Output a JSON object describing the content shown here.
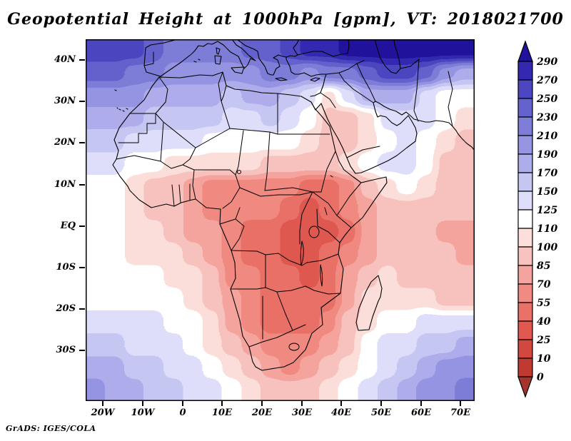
{
  "title": "Geopotential Height at 1000hPa [gpm], VT: 2018021700",
  "credit": "GrADS: IGES/COLA",
  "colors": {
    "background": "#ffffff",
    "frame": "#000000",
    "coastline": "#000000"
  },
  "axes": {
    "lat_tick_labels": [
      "40N",
      "30N",
      "20N",
      "10N",
      "EQ",
      "10S",
      "20S",
      "30S"
    ],
    "lon_tick_labels": [
      "20W",
      "10W",
      "0",
      "10E",
      "20E",
      "30E",
      "40E",
      "50E",
      "60E",
      "70E"
    ]
  },
  "colorbar": {
    "labels": [
      "290",
      "270",
      "250",
      "230",
      "210",
      "190",
      "170",
      "150",
      "125",
      "110",
      "100",
      "85",
      "70",
      "55",
      "40",
      "25",
      "10",
      "0"
    ],
    "palette_low_to_high": [
      "#a5342e",
      "#c03a32",
      "#d24840",
      "#e05850",
      "#ea7168",
      "#f08a82",
      "#f4a49e",
      "#f8c2be",
      "#fcdeda",
      "#ffffff",
      "#dedefa",
      "#c6c6f3",
      "#aeadeb",
      "#9695e2",
      "#7e7dd8",
      "#6462cd",
      "#4c46c0",
      "#3428b0",
      "#20129b"
    ]
  },
  "chart_data": {
    "type": "heatmap",
    "title": "Geopotential Height at 1000hPa [gpm]",
    "valid_time": "2018021700",
    "units": "gpm",
    "lon_range": [
      -24.3,
      73.5
    ],
    "lat_range": [
      -42.3,
      45.0
    ],
    "contour_levels": [
      0,
      10,
      25,
      40,
      55,
      70,
      85,
      100,
      110,
      125,
      150,
      170,
      190,
      210,
      230,
      250,
      270,
      290
    ],
    "grid_cols": 20,
    "grid_rows": 16,
    "grid_order": "north_to_south_rows_west_to_east_cols",
    "values_gpm": [
      [
        268,
        262,
        252,
        240,
        228,
        218,
        215,
        220,
        230,
        242,
        256,
        270,
        285,
        290,
        295,
        300,
        300,
        298,
        295,
        292
      ],
      [
        240,
        232,
        222,
        212,
        202,
        198,
        195,
        200,
        208,
        212,
        215,
        205,
        210,
        225,
        245,
        255,
        250,
        230,
        195,
        170
      ],
      [
        205,
        205,
        196,
        188,
        180,
        175,
        170,
        168,
        170,
        172,
        165,
        130,
        108,
        140,
        170,
        185,
        175,
        140,
        118,
        115
      ],
      [
        185,
        178,
        170,
        163,
        156,
        152,
        150,
        148,
        148,
        150,
        140,
        118,
        95,
        90,
        105,
        130,
        140,
        140,
        115,
        105
      ],
      [
        158,
        150,
        142,
        135,
        128,
        125,
        122,
        120,
        118,
        118,
        112,
        105,
        96,
        95,
        100,
        112,
        125,
        115,
        100,
        95
      ],
      [
        135,
        128,
        120,
        112,
        108,
        106,
        104,
        102,
        100,
        98,
        95,
        92,
        92,
        100,
        122,
        132,
        128,
        112,
        98,
        92
      ],
      [
        118,
        112,
        105,
        98,
        90,
        70,
        58,
        55,
        62,
        68,
        58,
        45,
        48,
        60,
        85,
        105,
        110,
        104,
        95,
        88
      ],
      [
        118,
        110,
        100,
        90,
        85,
        75,
        68,
        60,
        62,
        58,
        45,
        35,
        40,
        55,
        80,
        92,
        95,
        92,
        88,
        85
      ],
      [
        115,
        110,
        105,
        100,
        92,
        82,
        70,
        58,
        52,
        45,
        35,
        28,
        35,
        50,
        75,
        85,
        88,
        86,
        84,
        82
      ],
      [
        115,
        112,
        108,
        104,
        100,
        92,
        80,
        62,
        52,
        45,
        38,
        32,
        40,
        60,
        80,
        88,
        90,
        88,
        86,
        84
      ],
      [
        120,
        118,
        115,
        112,
        108,
        100,
        88,
        68,
        55,
        48,
        42,
        38,
        45,
        70,
        95,
        100,
        98,
        96,
        95,
        95
      ],
      [
        122,
        120,
        118,
        115,
        110,
        104,
        95,
        75,
        60,
        50,
        45,
        42,
        50,
        75,
        100,
        108,
        105,
        100,
        98,
        96
      ],
      [
        140,
        135,
        130,
        125,
        118,
        110,
        100,
        82,
        62,
        52,
        48,
        50,
        60,
        85,
        105,
        115,
        120,
        125,
        130,
        132
      ],
      [
        158,
        152,
        146,
        138,
        130,
        120,
        108,
        90,
        70,
        58,
        55,
        60,
        75,
        95,
        112,
        125,
        140,
        155,
        165,
        170
      ],
      [
        180,
        172,
        162,
        152,
        142,
        130,
        118,
        102,
        85,
        72,
        68,
        75,
        90,
        105,
        120,
        140,
        160,
        178,
        190,
        195
      ],
      [
        195,
        185,
        175,
        163,
        150,
        138,
        125,
        112,
        100,
        92,
        90,
        95,
        105,
        115,
        130,
        150,
        170,
        190,
        205,
        210
      ]
    ]
  }
}
